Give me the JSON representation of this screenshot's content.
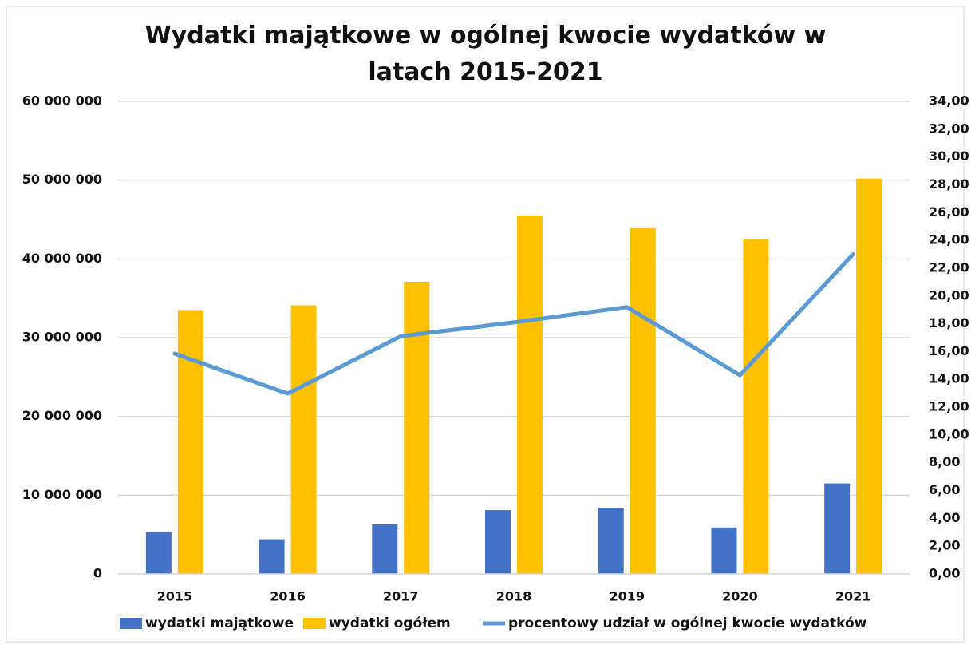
{
  "chart_data": {
    "type": "bar",
    "title": "Wydatki majątkowe w ogólnej kwocie wydatków w latach 2015-2021",
    "categories": [
      "2015",
      "2016",
      "2017",
      "2018",
      "2019",
      "2020",
      "2021"
    ],
    "series": [
      {
        "name": "wydatki majątkowe",
        "color": "#4472c4",
        "type": "bar",
        "values": [
          5300000,
          4400000,
          6300000,
          8100000,
          8400000,
          5900000,
          11500000
        ]
      },
      {
        "name": "wydatki ogółem",
        "color": "#ffc000",
        "type": "bar",
        "values": [
          33500000,
          34100000,
          37100000,
          45500000,
          44000000,
          42500000,
          50200000
        ]
      },
      {
        "name": "procentowy udział w ogólnej kwocie wydatków",
        "color": "#5b9bd5",
        "type": "line",
        "axis": "y2",
        "values": [
          15.85,
          12.98,
          17.1,
          18.1,
          19.2,
          14.3,
          23.0
        ]
      }
    ],
    "ylim": [
      0,
      60000000
    ],
    "yticks": [
      0,
      {
        "value": 10000000,
        "label": "10 000 000"
      },
      {
        "value": 20000000,
        "label": "20 000 000"
      },
      {
        "value": 30000000,
        "label": "30 000 000"
      },
      {
        "value": 40000000,
        "label": "40 000 000"
      },
      {
        "value": 50000000,
        "label": "50 000 000"
      },
      {
        "value": 60000000,
        "label": "60 000 000"
      }
    ],
    "y2lim": [
      0,
      34
    ],
    "y2ticks": [
      {
        "value": 0,
        "label": "0,00"
      },
      {
        "value": 2,
        "label": "2,00"
      },
      {
        "value": 4,
        "label": "4,00"
      },
      {
        "value": 6,
        "label": "6,00"
      },
      {
        "value": 8,
        "label": "8,00"
      },
      {
        "value": 10,
        "label": "10,00"
      },
      {
        "value": 12,
        "label": "12,00"
      },
      {
        "value": 14,
        "label": "14,00"
      },
      {
        "value": 16,
        "label": "16,00"
      },
      {
        "value": 18,
        "label": "18,00"
      },
      {
        "value": 20,
        "label": "20,00"
      },
      {
        "value": 22,
        "label": "22,00"
      },
      {
        "value": 24,
        "label": "24,00"
      },
      {
        "value": 26,
        "label": "26,00"
      },
      {
        "value": 28,
        "label": "28,00"
      },
      {
        "value": 30,
        "label": "30,00"
      },
      {
        "value": 32,
        "label": "32,00"
      },
      {
        "value": 34,
        "label": "34,00"
      }
    ],
    "grid": true,
    "legend": "bottom"
  }
}
